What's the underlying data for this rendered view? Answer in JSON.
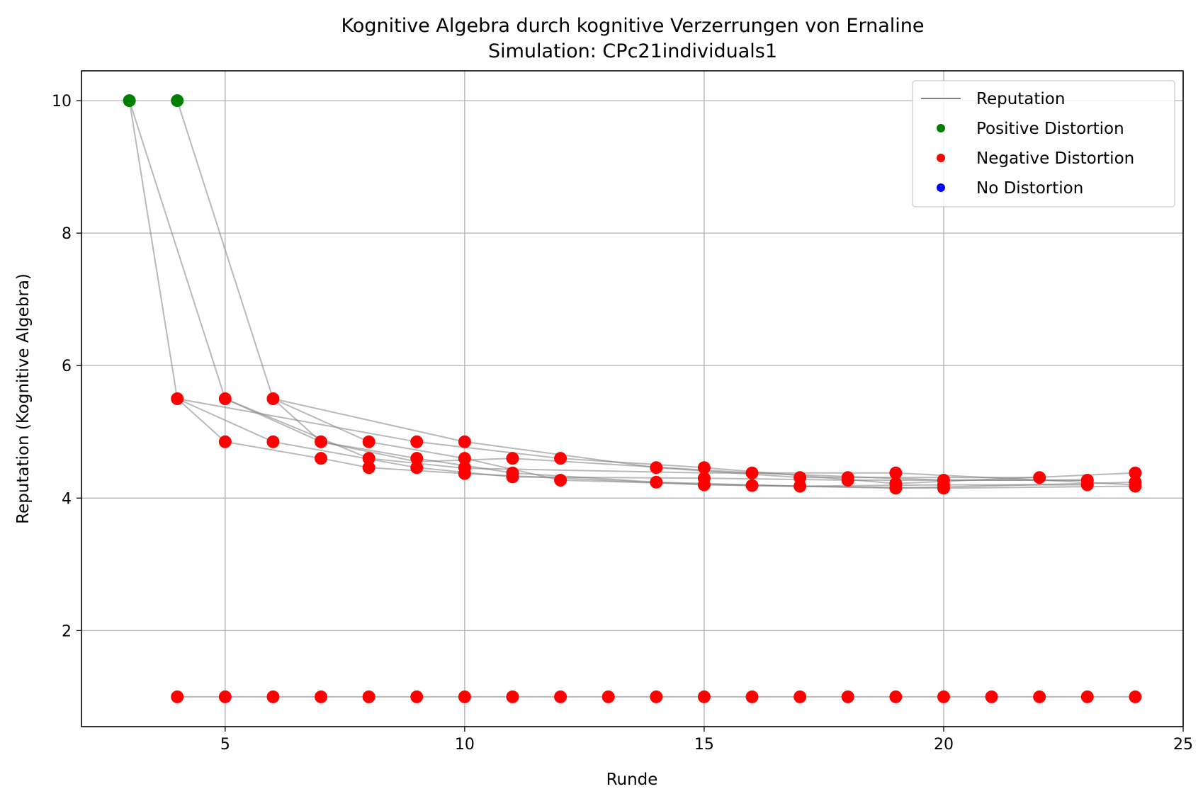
{
  "chart_data": {
    "type": "scatter",
    "title": "Kognitive Algebra durch kognitive Verzerrungen von Ernaline",
    "subtitle": "Simulation: CPc21individuals1",
    "xlabel": "Runde",
    "ylabel": "Reputation (Kognitive Algebra)",
    "xlim": [
      2.0,
      25.0
    ],
    "ylim": [
      0.55,
      10.45
    ],
    "xticks": [
      5,
      10,
      15,
      20,
      25
    ],
    "yticks": [
      2,
      4,
      6,
      8,
      10
    ],
    "grid": true,
    "legend_position": "top-right",
    "legend": [
      {
        "label": "Reputation",
        "kind": "line",
        "color": "#808080"
      },
      {
        "label": "Positive Distortion",
        "kind": "marker",
        "color": "#008000"
      },
      {
        "label": "Negative Distortion",
        "kind": "marker",
        "color": "#ff0000"
      },
      {
        "label": "No Distortion",
        "kind": "marker",
        "color": "#0000ff"
      }
    ],
    "lines": [
      {
        "points": [
          [
            3,
            10
          ],
          [
            4,
            5.5
          ],
          [
            5,
            4.85
          ],
          [
            7,
            4.6
          ],
          [
            8,
            4.46
          ],
          [
            10,
            4.37
          ],
          [
            15,
            4.2
          ],
          [
            20,
            4.15
          ],
          [
            24,
            4.18
          ]
        ]
      },
      {
        "points": [
          [
            3,
            10
          ],
          [
            5,
            5.5
          ],
          [
            7,
            4.85
          ],
          [
            9,
            4.6
          ],
          [
            11,
            4.38
          ],
          [
            14,
            4.24
          ],
          [
            17,
            4.18
          ],
          [
            20,
            4.2
          ],
          [
            23,
            4.2
          ]
        ]
      },
      {
        "points": [
          [
            4,
            10
          ],
          [
            6,
            5.5
          ],
          [
            8,
            4.85
          ],
          [
            10,
            4.6
          ],
          [
            12,
            4.27
          ],
          [
            16,
            4.19
          ],
          [
            19,
            4.15
          ],
          [
            24,
            4.24
          ]
        ]
      },
      {
        "points": [
          [
            4,
            5.5
          ],
          [
            6,
            4.85
          ],
          [
            9,
            4.46
          ],
          [
            11,
            4.32
          ],
          [
            15,
            4.3
          ],
          [
            18,
            4.27
          ],
          [
            23,
            4.27
          ]
        ]
      },
      {
        "points": [
          [
            4,
            5.5
          ],
          [
            9,
            4.85
          ],
          [
            12,
            4.6
          ],
          [
            15,
            4.46
          ],
          [
            19,
            4.22
          ],
          [
            24,
            4.38
          ]
        ]
      },
      {
        "points": [
          [
            6,
            5.5
          ],
          [
            10,
            4.85
          ],
          [
            14,
            4.46
          ],
          [
            17,
            4.31
          ],
          [
            22,
            4.31
          ]
        ]
      },
      {
        "points": [
          [
            5,
            5.5
          ],
          [
            8,
            4.6
          ],
          [
            10,
            4.45
          ],
          [
            15,
            4.38
          ],
          [
            19,
            4.38
          ],
          [
            24,
            4.2
          ]
        ]
      },
      {
        "points": [
          [
            6,
            5.5
          ],
          [
            7,
            4.85
          ],
          [
            9,
            4.55
          ],
          [
            11,
            4.6
          ],
          [
            16,
            4.38
          ],
          [
            20,
            4.27
          ],
          [
            23,
            4.27
          ]
        ]
      },
      {
        "points": [
          [
            4,
            1
          ],
          [
            24,
            1
          ]
        ]
      }
    ],
    "positive_points": [
      [
        3,
        10
      ],
      [
        4,
        10
      ]
    ],
    "negative_points": [
      [
        4,
        5.5
      ],
      [
        5,
        5.5
      ],
      [
        6,
        5.5
      ],
      [
        5,
        4.85
      ],
      [
        6,
        4.85
      ],
      [
        7,
        4.85
      ],
      [
        8,
        4.85
      ],
      [
        9,
        4.85
      ],
      [
        10,
        4.85
      ],
      [
        7,
        4.6
      ],
      [
        8,
        4.6
      ],
      [
        9,
        4.6
      ],
      [
        10,
        4.6
      ],
      [
        11,
        4.6
      ],
      [
        12,
        4.6
      ],
      [
        8,
        4.46
      ],
      [
        9,
        4.46
      ],
      [
        10,
        4.46
      ],
      [
        14,
        4.46
      ],
      [
        15,
        4.46
      ],
      [
        10,
        4.37
      ],
      [
        11,
        4.38
      ],
      [
        11,
        4.32
      ],
      [
        12,
        4.27
      ],
      [
        14,
        4.24
      ],
      [
        15,
        4.3
      ],
      [
        15,
        4.2
      ],
      [
        16,
        4.38
      ],
      [
        16,
        4.19
      ],
      [
        17,
        4.31
      ],
      [
        17,
        4.18
      ],
      [
        18,
        4.31
      ],
      [
        18,
        4.27
      ],
      [
        19,
        4.38
      ],
      [
        19,
        4.22
      ],
      [
        19,
        4.15
      ],
      [
        20,
        4.27
      ],
      [
        20,
        4.2
      ],
      [
        20,
        4.15
      ],
      [
        22,
        4.31
      ],
      [
        23,
        4.27
      ],
      [
        23,
        4.2
      ],
      [
        24,
        4.38
      ],
      [
        24,
        4.24
      ],
      [
        24,
        4.18
      ],
      [
        4,
        1
      ],
      [
        5,
        1
      ],
      [
        6,
        1
      ],
      [
        7,
        1
      ],
      [
        8,
        1
      ],
      [
        9,
        1
      ],
      [
        10,
        1
      ],
      [
        11,
        1
      ],
      [
        12,
        1
      ],
      [
        13,
        1
      ],
      [
        14,
        1
      ],
      [
        15,
        1
      ],
      [
        16,
        1
      ],
      [
        17,
        1
      ],
      [
        18,
        1
      ],
      [
        19,
        1
      ],
      [
        20,
        1
      ],
      [
        21,
        1
      ],
      [
        22,
        1
      ],
      [
        23,
        1
      ],
      [
        24,
        1
      ]
    ],
    "neutral_points": []
  }
}
